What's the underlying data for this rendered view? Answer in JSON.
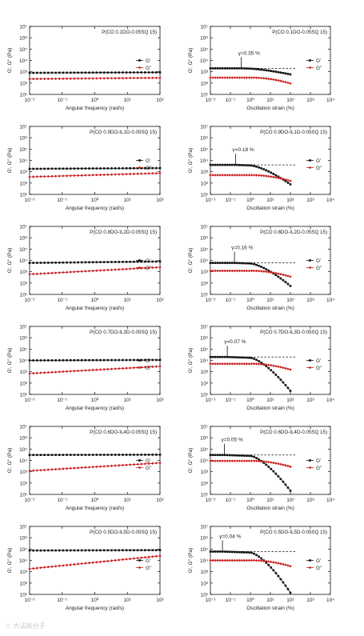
{
  "watermark": "☺ 大话高分子",
  "chart_data": [
    {
      "type": "scatter",
      "panel": "freq",
      "sample": "P(CO 0.1DO-0.05SQ 15)",
      "xlabel": "Angular frequency (rad/s)",
      "ylabel": "G', G'' (Pa)",
      "xscale": "log",
      "yscale": "log",
      "xlim": [
        0.01,
        100
      ],
      "ylim": [
        10,
        10000000
      ],
      "xticks": [
        "10⁻²",
        "10⁻¹",
        "10⁰",
        "10¹",
        "10²"
      ],
      "yticks": [
        "10¹",
        "10²",
        "10³",
        "10⁴",
        "10⁵",
        "10⁶",
        "10⁷"
      ],
      "legend": "right",
      "series": [
        {
          "name": "G'",
          "color": "#111111",
          "marker": "square",
          "y_start": 800,
          "y_end": 880
        },
        {
          "name": "G''",
          "color": "#c81e1e",
          "marker": "diamond",
          "y_start": 230,
          "y_end": 290
        }
      ]
    },
    {
      "type": "scatter",
      "panel": "strain",
      "sample": "P(CO 0.1DO-0.05SQ 15)",
      "xlabel": "Oscillation strain (%)",
      "ylabel": "G', G'' (Pa)",
      "xscale": "log",
      "yscale": "log",
      "xlim": [
        0.01,
        10000
      ],
      "ylim": [
        10,
        10000000
      ],
      "xticks": [
        "10⁻²",
        "10⁻¹",
        "10⁰",
        "10¹",
        "10²",
        "10³",
        "10⁴"
      ],
      "yticks": [
        "10¹",
        "10²",
        "10³",
        "10⁴",
        "10⁵",
        "10⁶",
        "10⁷"
      ],
      "legend": "right",
      "annotation": "γ=0.35 %",
      "annotation_x": 0.35,
      "series": [
        {
          "name": "G'",
          "color": "#111111",
          "marker": "square",
          "plateau": 2000,
          "gamma_c": 0.35,
          "drop": 0.25,
          "end": 100
        },
        {
          "name": "G''",
          "color": "#c81e1e",
          "marker": "diamond",
          "plateau": 300,
          "end": 100
        }
      ]
    },
    {
      "type": "scatter",
      "panel": "freq",
      "sample": "P(CO 0.9DO-IL1D-0.05SQ 15)",
      "xlabel": "Angular frequency (rad/s)",
      "ylabel": "G', G'' (Pa)",
      "xscale": "log",
      "yscale": "log",
      "xlim": [
        0.01,
        100
      ],
      "ylim": [
        10,
        10000000
      ],
      "xticks": [
        "10⁻²",
        "10⁻¹",
        "10⁰",
        "10¹",
        "10²"
      ],
      "yticks": [
        "10¹",
        "10²",
        "10³",
        "10⁴",
        "10⁵",
        "10⁶",
        "10⁷"
      ],
      "legend": "right",
      "series": [
        {
          "name": "G'",
          "color": "#111111",
          "marker": "square",
          "y_start": 1800,
          "y_end": 2100
        },
        {
          "name": "G''",
          "color": "#c81e1e",
          "marker": "diamond",
          "y_start": 350,
          "y_end": 750
        }
      ]
    },
    {
      "type": "scatter",
      "panel": "strain",
      "sample": "P(CO 0.9DO-IL1D-0.05SQ 15)",
      "xlabel": "Oscillation strain (%)",
      "ylabel": "G', G'' (Pa)",
      "xscale": "log",
      "yscale": "log",
      "xlim": [
        0.01,
        10000
      ],
      "ylim": [
        10,
        10000000
      ],
      "xticks": [
        "10⁻²",
        "10⁻¹",
        "10⁰",
        "10¹",
        "10²",
        "10³",
        "10⁴"
      ],
      "yticks": [
        "10¹",
        "10²",
        "10³",
        "10⁴",
        "10⁵",
        "10⁶",
        "10⁷"
      ],
      "legend": "right",
      "annotation": "γ=0.18 %",
      "annotation_x": 0.18,
      "series": [
        {
          "name": "G'",
          "color": "#111111",
          "marker": "square",
          "plateau": 4000,
          "gamma_c": 0.18,
          "drop": 1.0,
          "end": 100
        },
        {
          "name": "G''",
          "color": "#c81e1e",
          "marker": "diamond",
          "plateau": 500,
          "end": 100
        }
      ]
    },
    {
      "type": "scatter",
      "panel": "freq",
      "sample": "P(CO 0.8DO-IL2D-0.05SQ 15)",
      "xlabel": "Angular frequency (rad/s)",
      "ylabel": "G', G'' (Pa)",
      "xscale": "log",
      "yscale": "log",
      "xlim": [
        0.01,
        100
      ],
      "ylim": [
        10,
        10000000
      ],
      "xticks": [
        "10⁻²",
        "10⁻¹",
        "10⁰",
        "10¹",
        "10²"
      ],
      "yticks": [
        "10¹",
        "10²",
        "10³",
        "10⁴",
        "10⁵",
        "10⁶",
        "10⁷"
      ],
      "legend": "right",
      "series": [
        {
          "name": "G'",
          "color": "#111111",
          "marker": "square",
          "y_start": 6000,
          "y_end": 8000
        },
        {
          "name": "G''",
          "color": "#c81e1e",
          "marker": "diamond",
          "y_start": 600,
          "y_end": 2500
        }
      ]
    },
    {
      "type": "scatter",
      "panel": "strain",
      "sample": "P(CO 0.8DO-IL2D-0.05SQ 15)",
      "xlabel": "Oscillation strain (%)",
      "ylabel": "G', G'' (Pa)",
      "xscale": "log",
      "yscale": "log",
      "xlim": [
        0.01,
        10000
      ],
      "ylim": [
        10,
        10000000
      ],
      "xticks": [
        "10⁻²",
        "10⁻¹",
        "10⁰",
        "10¹",
        "10²",
        "10³",
        "10⁴"
      ],
      "yticks": [
        "10¹",
        "10²",
        "10³",
        "10⁴",
        "10⁵",
        "10⁶",
        "10⁷"
      ],
      "legend": "right",
      "annotation": "γ=0.16 %",
      "annotation_x": 0.16,
      "series": [
        {
          "name": "G'",
          "color": "#111111",
          "marker": "square",
          "plateau": 6000,
          "gamma_c": 0.16,
          "drop": 1.2,
          "end": 100
        },
        {
          "name": "G''",
          "color": "#c81e1e",
          "marker": "diamond",
          "plateau": 1200,
          "end": 100
        }
      ]
    },
    {
      "type": "scatter",
      "panel": "freq",
      "sample": "P(CO 0.7DO-IL3D-0.05SQ 15)",
      "xlabel": "Angular frequency (rad/s)",
      "ylabel": "G', G'' (Pa)",
      "xscale": "log",
      "yscale": "log",
      "xlim": [
        0.01,
        100
      ],
      "ylim": [
        10,
        10000000
      ],
      "xticks": [
        "10⁻²",
        "10⁻¹",
        "10⁰",
        "10¹",
        "10²"
      ],
      "yticks": [
        "10¹",
        "10²",
        "10³",
        "10⁴",
        "10⁵",
        "10⁶",
        "10⁷"
      ],
      "legend": "right",
      "series": [
        {
          "name": "G'",
          "color": "#111111",
          "marker": "square",
          "y_start": 10000,
          "y_end": 11000
        },
        {
          "name": "G''",
          "color": "#c81e1e",
          "marker": "diamond",
          "y_start": 700,
          "y_end": 3000
        }
      ]
    },
    {
      "type": "scatter",
      "panel": "strain",
      "sample": "P(CO 0.7DO-IL3D-0.05SQ 15)",
      "xlabel": "Oscillation strain (%)",
      "ylabel": "G', G'' (Pa)",
      "xscale": "log",
      "yscale": "log",
      "xlim": [
        0.01,
        10000
      ],
      "ylim": [
        10,
        10000000
      ],
      "xticks": [
        "10⁻²",
        "10⁻¹",
        "10⁰",
        "10¹",
        "10²",
        "10³",
        "10⁴"
      ],
      "yticks": [
        "10¹",
        "10²",
        "10³",
        "10⁴",
        "10⁵",
        "10⁶",
        "10⁷"
      ],
      "legend": "right",
      "annotation": "γ=0.07 %",
      "annotation_x": 0.07,
      "series": [
        {
          "name": "G'",
          "color": "#111111",
          "marker": "square",
          "plateau": 20000,
          "gamma_c": 0.07,
          "drop": 1.8,
          "end": 100
        },
        {
          "name": "G''",
          "color": "#c81e1e",
          "marker": "diamond",
          "plateau": 5000,
          "end": 100
        }
      ]
    },
    {
      "type": "scatter",
      "panel": "freq",
      "sample": "P(CO 0.6DO-IL4D-0.05SQ 15)",
      "xlabel": "Angular frequency (rad/s)",
      "ylabel": "G', G'' (Pa)",
      "xscale": "log",
      "yscale": "log",
      "xlim": [
        0.01,
        100
      ],
      "ylim": [
        10,
        10000000
      ],
      "xticks": [
        "10⁻²",
        "10⁻¹",
        "10⁰",
        "10¹",
        "10²"
      ],
      "yticks": [
        "10¹",
        "10²",
        "10³",
        "10⁴",
        "10⁵",
        "10⁶",
        "10⁷"
      ],
      "legend": "right",
      "series": [
        {
          "name": "G'",
          "color": "#111111",
          "marker": "square",
          "y_start": 30000,
          "y_end": 32000
        },
        {
          "name": "G''",
          "color": "#c81e1e",
          "marker": "diamond",
          "y_start": 1200,
          "y_end": 6000
        }
      ]
    },
    {
      "type": "scatter",
      "panel": "strain",
      "sample": "P(CO 0.6DO-IL4D-0.05SQ 15)",
      "xlabel": "Oscillation strain (%)",
      "ylabel": "G', G'' (Pa)",
      "xscale": "log",
      "yscale": "log",
      "xlim": [
        0.01,
        10000
      ],
      "ylim": [
        10,
        10000000
      ],
      "xticks": [
        "10⁻²",
        "10⁻¹",
        "10⁰",
        "10¹",
        "10²",
        "10³",
        "10⁴"
      ],
      "yticks": [
        "10¹",
        "10²",
        "10³",
        "10⁴",
        "10⁵",
        "10⁶",
        "10⁷"
      ],
      "legend": "right",
      "annotation": "γ=0.05 %",
      "annotation_x": 0.05,
      "series": [
        {
          "name": "G'",
          "color": "#111111",
          "marker": "square",
          "plateau": 30000,
          "gamma_c": 0.05,
          "drop": 1.9,
          "end": 100
        },
        {
          "name": "G''",
          "color": "#c81e1e",
          "marker": "diamond",
          "plateau": 9000,
          "end": 100
        }
      ]
    },
    {
      "type": "scatter",
      "panel": "freq",
      "sample": "P(CO 0.5DO-IL5D-0.05SQ 15)",
      "xlabel": "Angular frequency (rad/s)",
      "ylabel": "G', G'' (Pa)",
      "xscale": "log",
      "yscale": "log",
      "xlim": [
        0.01,
        100
      ],
      "ylim": [
        10,
        10000000
      ],
      "xticks": [
        "10⁻²",
        "10⁻¹",
        "10⁰",
        "10¹",
        "10²"
      ],
      "yticks": [
        "10¹",
        "10²",
        "10³",
        "10⁴",
        "10⁵",
        "10⁶",
        "10⁷"
      ],
      "legend": "right",
      "series": [
        {
          "name": "G'",
          "color": "#111111",
          "marker": "square",
          "y_start": 75000,
          "y_end": 80000
        },
        {
          "name": "G''",
          "color": "#c81e1e",
          "marker": "diamond",
          "y_start": 1800,
          "y_end": 25000
        }
      ]
    },
    {
      "type": "scatter",
      "panel": "strain",
      "sample": "P(CO 0.5DO-IL5D-0.05SQ 15)",
      "xlabel": "Oscillation strain (%)",
      "ylabel": "G', G'' (Pa)",
      "xscale": "log",
      "yscale": "log",
      "xlim": [
        0.01,
        10000
      ],
      "ylim": [
        10,
        10000000
      ],
      "xticks": [
        "10⁻²",
        "10⁻¹",
        "10⁰",
        "10¹",
        "10²",
        "10³",
        "10⁴"
      ],
      "yticks": [
        "10¹",
        "10²",
        "10³",
        "10⁴",
        "10⁵",
        "10⁶",
        "10⁷"
      ],
      "legend": "right",
      "annotation": "γ=0.04 %",
      "annotation_x": 0.04,
      "series": [
        {
          "name": "G'",
          "color": "#111111",
          "marker": "square",
          "plateau": 60000,
          "gamma_c": 0.04,
          "drop": 2.2,
          "end": 100
        },
        {
          "name": "G''",
          "color": "#c81e1e",
          "marker": "diamond",
          "plateau": 10000,
          "end": 100
        }
      ]
    }
  ]
}
